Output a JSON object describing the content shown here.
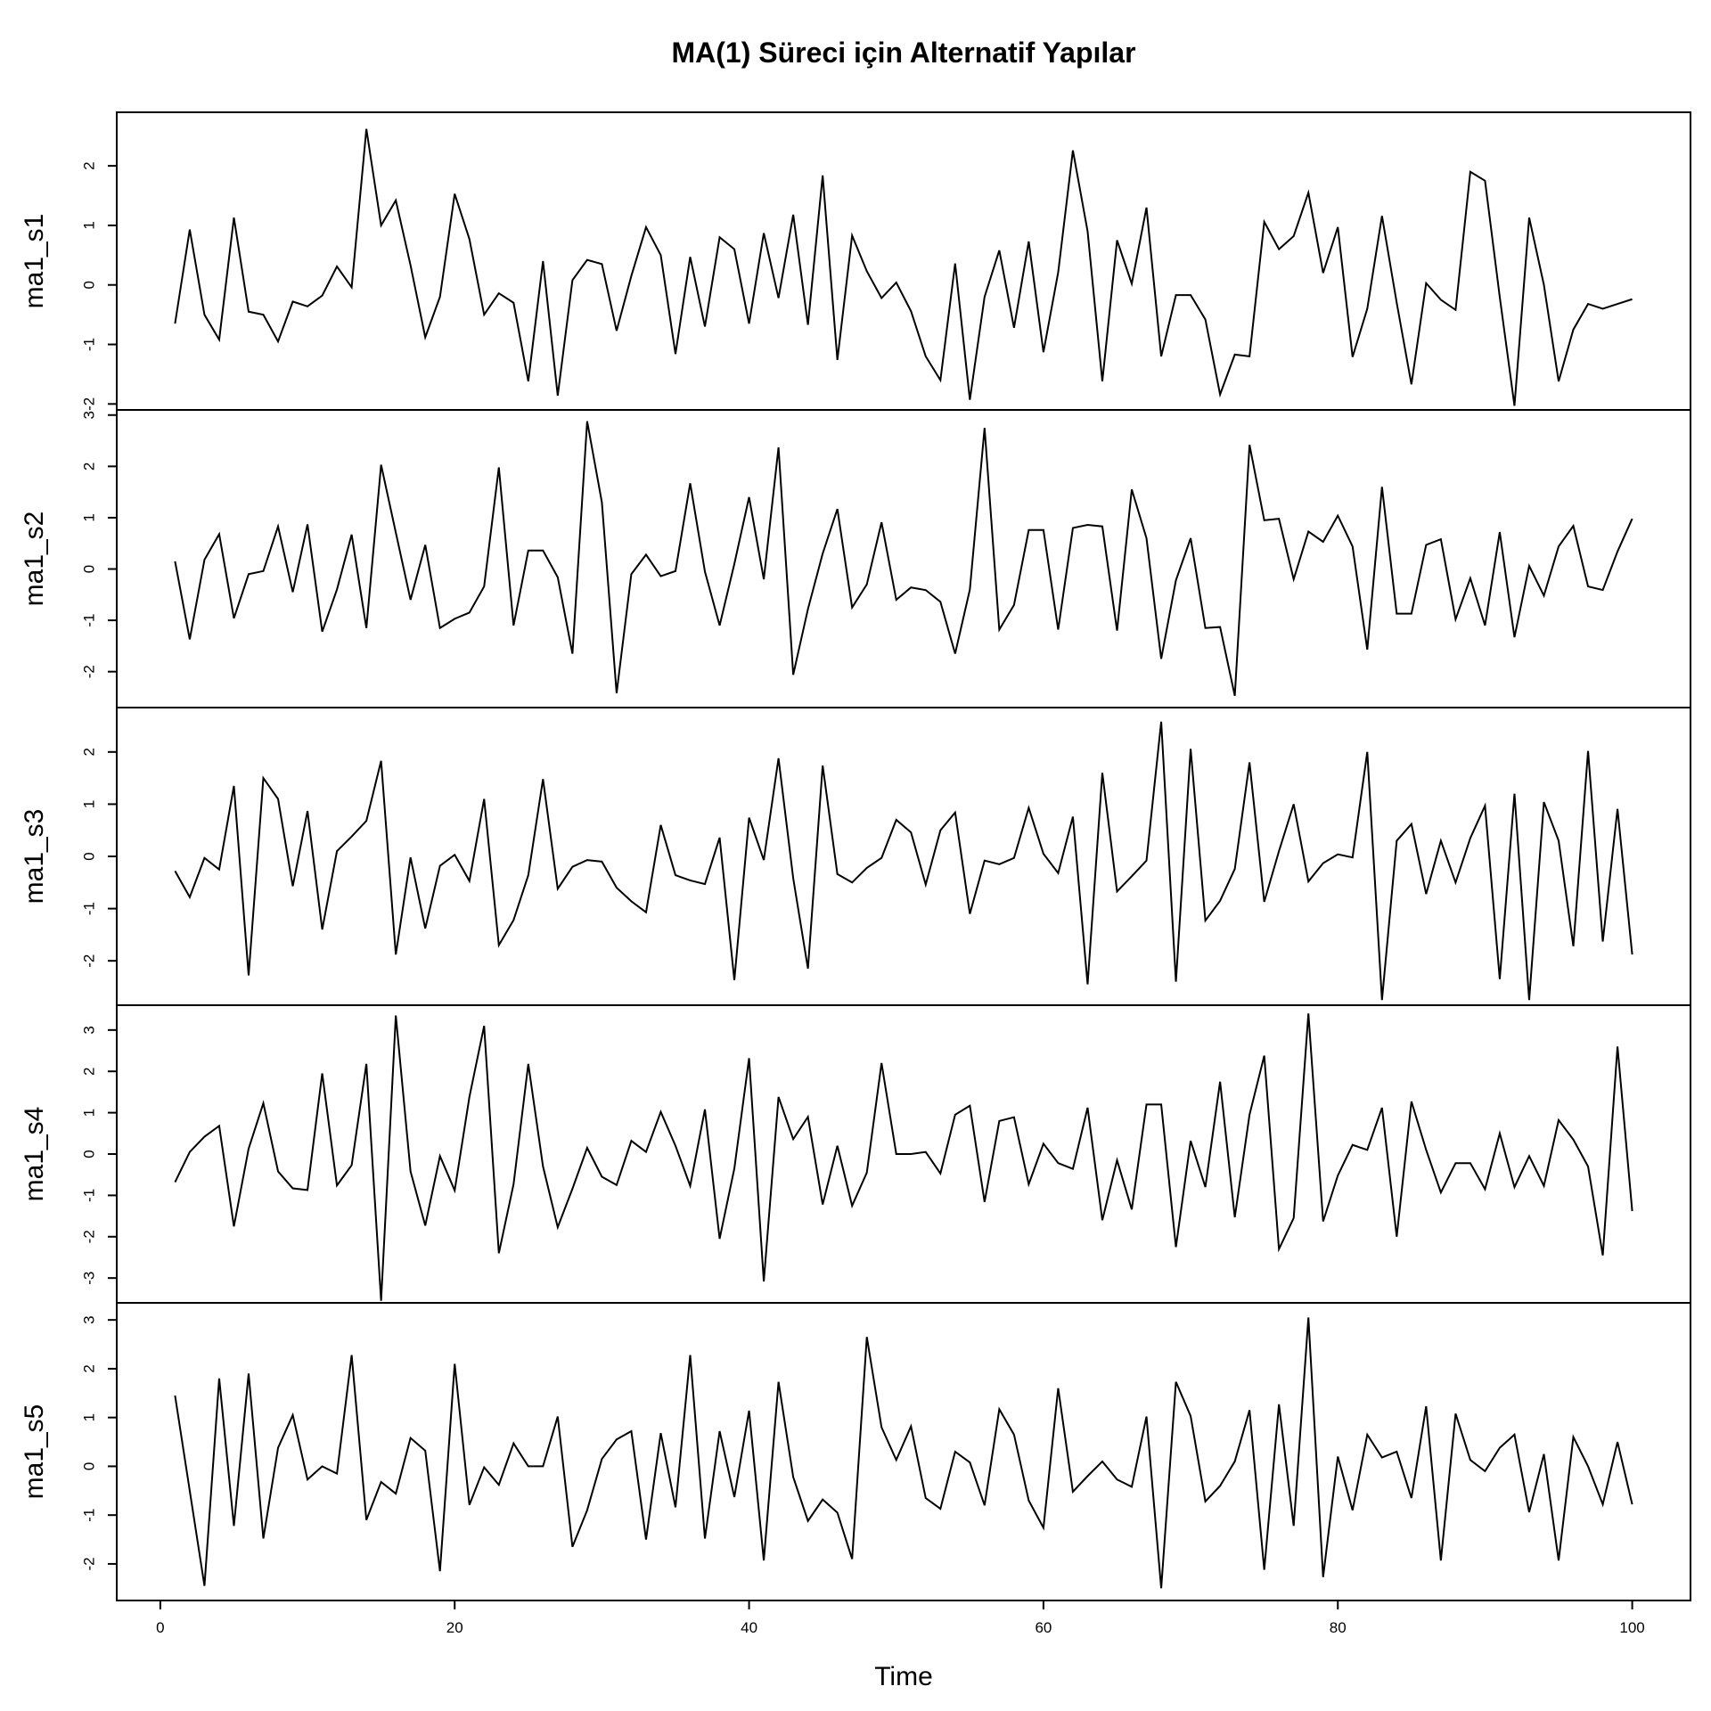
{
  "chart_data": {
    "type": "line",
    "title": "MA(1) Süreci için Alternatif Yapılar",
    "xlabel": "Time",
    "xlim": [
      1,
      100
    ],
    "xticks": [
      0,
      20,
      40,
      60,
      80,
      100
    ],
    "xtick_labels": [
      "0",
      "20",
      "40",
      "60",
      "80",
      "100"
    ],
    "series": [
      {
        "name": "ma1_s1",
        "ylabel": "ma1_s1",
        "ylim": [
          -2.1,
          2.9
        ],
        "yticks": [
          -2,
          -1,
          0,
          1,
          2
        ],
        "ytick_labels": [
          "-2",
          "-1",
          "0",
          "1",
          "2"
        ],
        "values": [
          -0.65,
          0.93,
          -0.5,
          -0.92,
          1.13,
          -0.45,
          -0.5,
          -0.95,
          -0.28,
          -0.36,
          -0.18,
          0.31,
          -0.04,
          2.62,
          1.0,
          1.42,
          0.33,
          -0.88,
          -0.2,
          1.53,
          0.77,
          -0.5,
          -0.14,
          -0.3,
          -1.62,
          0.4,
          -1.86,
          0.08,
          0.42,
          0.35,
          -0.77,
          0.15,
          0.97,
          0.5,
          -1.16,
          0.47,
          -0.7,
          0.8,
          0.6,
          -0.65,
          0.87,
          -0.22,
          1.18,
          -0.67,
          1.84,
          -1.26,
          0.83,
          0.23,
          -0.22,
          0.04,
          -0.44,
          -1.2,
          -1.6,
          0.36,
          -1.93,
          -0.2,
          0.58,
          -0.72,
          0.73,
          -1.13,
          0.21,
          2.26,
          0.9,
          -1.62,
          0.75,
          0.02,
          1.3,
          -1.2,
          -0.17,
          -0.17,
          -0.58,
          -1.84,
          -1.17,
          -1.2,
          1.06,
          0.6,
          0.82,
          1.55,
          0.2,
          0.97,
          -1.21,
          -0.4,
          1.16,
          -0.3,
          -1.67,
          0.03,
          -0.25,
          -0.42,
          1.9,
          1.75,
          -0.2,
          -2.03,
          1.13,
          0.0,
          -1.62,
          -0.75,
          -0.32,
          -0.4,
          -0.32,
          -0.24
        ]
      },
      {
        "name": "ma1_s2",
        "ylabel": "ma1_s2",
        "ylim": [
          -2.7,
          3.1
        ],
        "yticks": [
          -2,
          -1,
          0,
          1,
          2,
          3
        ],
        "ytick_labels": [
          "-2",
          "-1",
          "0",
          "1",
          "2",
          "3"
        ],
        "values": [
          0.15,
          -1.37,
          0.18,
          0.68,
          -0.96,
          -0.1,
          -0.04,
          0.83,
          -0.45,
          0.87,
          -1.22,
          -0.4,
          0.67,
          -1.15,
          2.03,
          0.71,
          -0.6,
          0.47,
          -1.15,
          -0.97,
          -0.85,
          -0.34,
          1.98,
          -1.1,
          0.36,
          0.36,
          -0.16,
          -1.65,
          2.88,
          1.3,
          -2.42,
          -0.1,
          0.28,
          -0.14,
          -0.04,
          1.67,
          -0.05,
          -1.1,
          0.1,
          1.4,
          -0.2,
          2.37,
          -2.06,
          -0.78,
          0.3,
          1.17,
          -0.75,
          -0.3,
          0.91,
          -0.6,
          -0.36,
          -0.41,
          -0.64,
          -1.65,
          -0.4,
          2.75,
          -1.18,
          -0.7,
          0.76,
          0.76,
          -1.18,
          0.8,
          0.86,
          0.83,
          -1.2,
          1.55,
          0.6,
          -1.75,
          -0.22,
          0.6,
          -1.15,
          -1.13,
          -2.47,
          2.42,
          0.95,
          0.98,
          -0.2,
          0.73,
          0.53,
          1.04,
          0.44,
          -1.57,
          1.6,
          -0.87,
          -0.87,
          0.47,
          0.58,
          -0.98,
          -0.18,
          -1.1,
          0.72,
          -1.33,
          0.06,
          -0.52,
          0.44,
          0.84,
          -0.34,
          -0.41,
          0.34,
          0.98
        ]
      },
      {
        "name": "ma1_s3",
        "ylabel": "ma1_s3",
        "ylim": [
          -2.85,
          2.85
        ],
        "yticks": [
          -2,
          -1,
          0,
          1,
          2
        ],
        "ytick_labels": [
          "-2",
          "-1",
          "0",
          "1",
          "2"
        ],
        "values": [
          -0.28,
          -0.78,
          -0.03,
          -0.25,
          1.35,
          -2.28,
          1.5,
          1.1,
          -0.57,
          0.87,
          -1.4,
          0.1,
          0.38,
          0.68,
          1.83,
          -1.88,
          -0.02,
          -1.38,
          -0.18,
          0.03,
          -0.47,
          1.1,
          -1.7,
          -1.22,
          -0.36,
          1.48,
          -0.62,
          -0.2,
          -0.07,
          -0.1,
          -0.6,
          -0.86,
          -1.07,
          0.6,
          -0.36,
          -0.46,
          -0.53,
          0.36,
          -2.37,
          0.74,
          -0.07,
          1.88,
          -0.42,
          -2.15,
          1.74,
          -0.34,
          -0.5,
          -0.22,
          -0.03,
          0.7,
          0.46,
          -0.54,
          0.5,
          0.84,
          -1.1,
          -0.08,
          -0.15,
          -0.03,
          0.93,
          0.05,
          -0.32,
          0.76,
          -2.45,
          1.6,
          -0.67,
          -0.38,
          -0.08,
          2.58,
          -2.4,
          2.06,
          -1.23,
          -0.85,
          -0.24,
          1.8,
          -0.87,
          0.1,
          1.0,
          -0.48,
          -0.13,
          0.04,
          -0.02,
          2.0,
          -2.75,
          0.3,
          0.62,
          -0.72,
          0.3,
          -0.5,
          0.35,
          0.97,
          -2.35,
          1.2,
          -2.75,
          1.04,
          0.3,
          -1.72,
          2.02,
          -1.63,
          0.91,
          -1.88
        ]
      },
      {
        "name": "ma1_s4",
        "ylabel": "ma1_s4",
        "ylim": [
          -3.6,
          3.6
        ],
        "yticks": [
          -3,
          -2,
          -1,
          0,
          1,
          2,
          3
        ],
        "ytick_labels": [
          "-3",
          "-2",
          "-1",
          "0",
          "1",
          "2",
          "3"
        ],
        "values": [
          -0.68,
          0.05,
          0.42,
          0.68,
          -1.75,
          0.13,
          1.23,
          -0.42,
          -0.83,
          -0.87,
          1.95,
          -0.76,
          -0.27,
          2.18,
          -3.55,
          3.35,
          -0.42,
          -1.73,
          -0.05,
          -0.88,
          1.38,
          3.1,
          -2.4,
          -0.73,
          2.18,
          -0.3,
          -1.77,
          -0.84,
          0.15,
          -0.55,
          -0.75,
          0.32,
          0.05,
          1.02,
          0.2,
          -0.77,
          1.08,
          -2.05,
          -0.35,
          2.32,
          -3.08,
          1.38,
          0.36,
          0.9,
          -1.22,
          0.2,
          -1.25,
          -0.45,
          2.2,
          0.0,
          0.0,
          0.05,
          -0.47,
          0.95,
          1.17,
          -1.16,
          0.8,
          0.89,
          -0.73,
          0.25,
          -0.22,
          -0.36,
          1.12,
          -1.6,
          -0.15,
          -1.34,
          1.2,
          1.2,
          -2.25,
          0.32,
          -0.8,
          1.75,
          -1.53,
          0.95,
          2.38,
          -2.3,
          -1.55,
          3.4,
          -1.63,
          -0.52,
          0.22,
          0.1,
          1.12,
          -2.0,
          1.27,
          0.1,
          -0.93,
          -0.22,
          -0.22,
          -0.85,
          0.5,
          -0.8,
          -0.05,
          -0.77,
          0.82,
          0.35,
          -0.3,
          -2.45,
          2.6,
          -1.38
        ]
      },
      {
        "name": "ma1_s5",
        "ylabel": "ma1_s5",
        "ylim": [
          -2.75,
          3.35
        ],
        "yticks": [
          -2,
          -1,
          0,
          1,
          2,
          3
        ],
        "ytick_labels": [
          "-2",
          "-1",
          "0",
          "1",
          "2",
          "3"
        ],
        "values": [
          1.45,
          -0.5,
          -2.45,
          1.8,
          -1.22,
          1.9,
          -1.48,
          0.38,
          1.05,
          -0.27,
          0.0,
          -0.15,
          2.28,
          -1.1,
          -0.32,
          -0.56,
          0.58,
          0.32,
          -2.15,
          2.1,
          -0.79,
          -0.02,
          -0.38,
          0.47,
          0.0,
          0.0,
          1.02,
          -1.65,
          -0.9,
          0.15,
          0.55,
          0.72,
          -1.5,
          0.68,
          -0.84,
          2.28,
          -1.48,
          0.72,
          -0.63,
          1.14,
          -1.93,
          1.73,
          -0.22,
          -1.12,
          -0.68,
          -0.95,
          -1.9,
          2.65,
          0.8,
          0.13,
          0.82,
          -0.65,
          -0.87,
          0.3,
          0.08,
          -0.8,
          1.17,
          0.65,
          -0.7,
          -1.26,
          1.6,
          -0.52,
          -0.2,
          0.1,
          -0.27,
          -0.42,
          1.02,
          -2.5,
          1.73,
          1.03,
          -0.72,
          -0.4,
          0.1,
          1.15,
          -2.12,
          1.27,
          -1.22,
          3.05,
          -2.27,
          0.2,
          -0.9,
          0.65,
          0.18,
          0.3,
          -0.65,
          1.23,
          -1.93,
          1.08,
          0.13,
          -0.1,
          0.38,
          0.65,
          -0.94,
          0.25,
          -1.93,
          0.6,
          0.0,
          -0.78,
          0.5,
          -0.78
        ]
      }
    ]
  }
}
